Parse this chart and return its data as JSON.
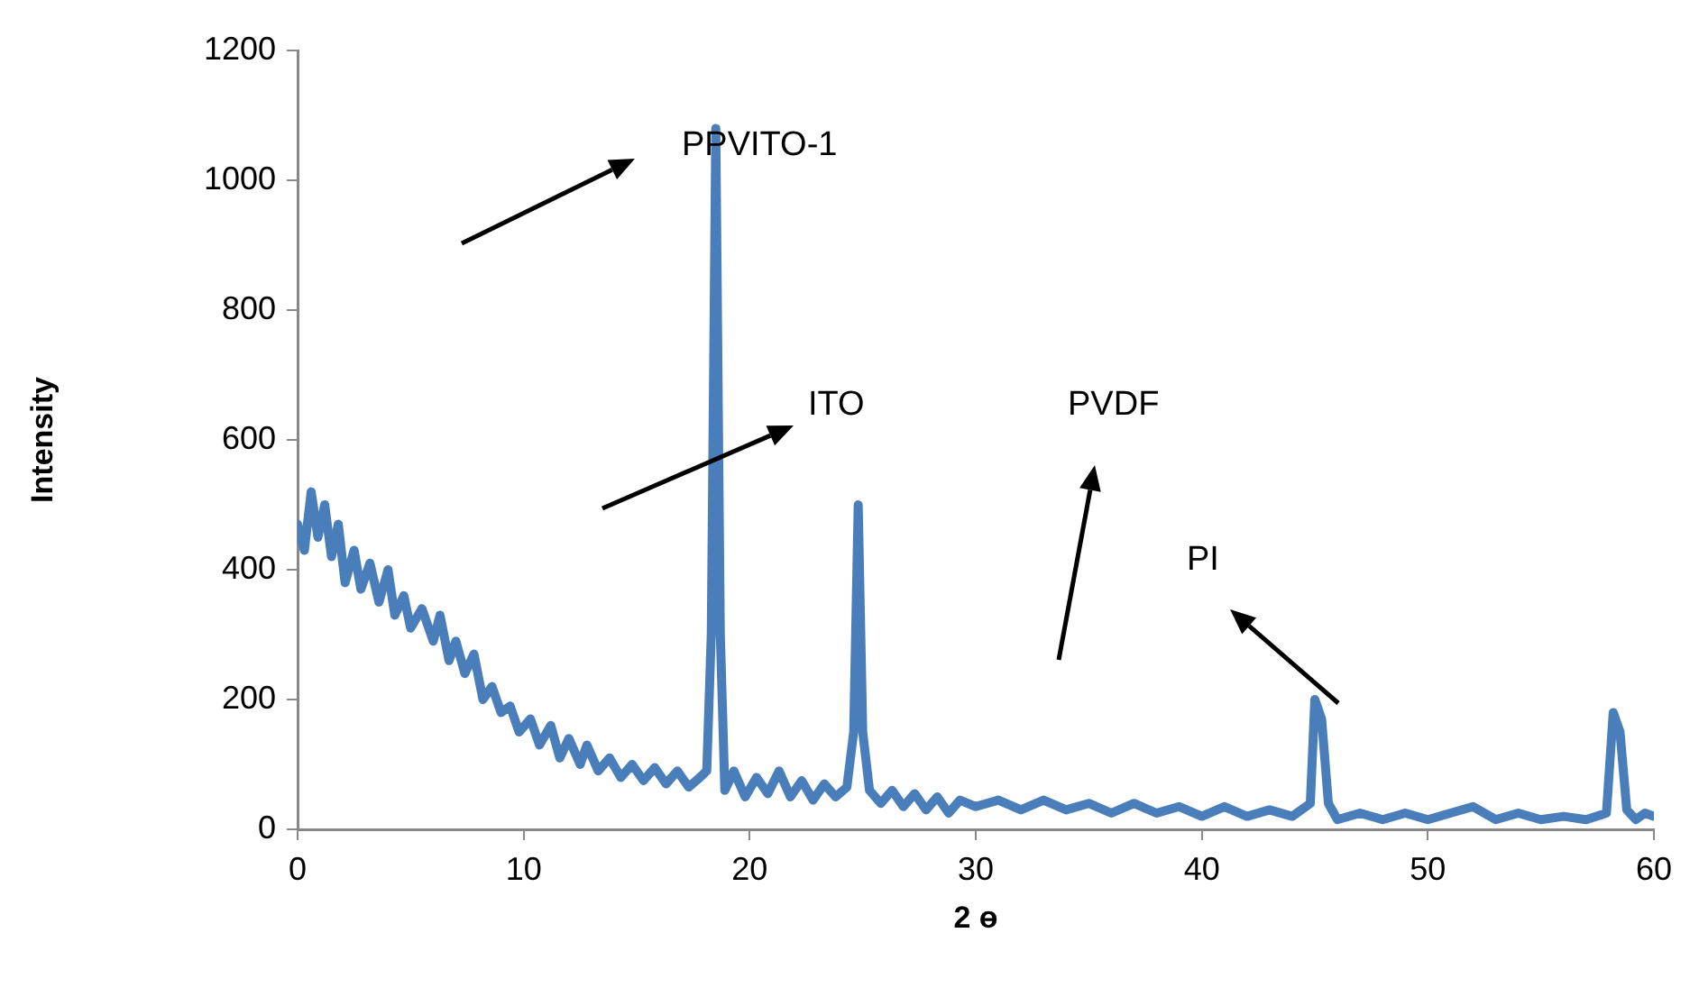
{
  "chart_data": {
    "type": "line",
    "xlabel": "2 ɵ",
    "ylabel": "Intensity",
    "xlim": [
      0,
      60
    ],
    "xticks": [
      0,
      10,
      20,
      30,
      40,
      50,
      60
    ],
    "ylim": [
      0,
      1200
    ],
    "yticks": [
      0,
      200,
      400,
      600,
      800,
      1000,
      1200
    ],
    "grid": false,
    "legend": false,
    "marker": "none",
    "line_style": "solid",
    "annotations": [
      "PPVITO-1",
      "ITO",
      "PVDF",
      "PI"
    ],
    "series": [
      {
        "color": "#4a7ebb",
        "x": [
          0,
          0.3,
          0.6,
          0.9,
          1.2,
          1.5,
          1.8,
          2.1,
          2.5,
          2.8,
          3.2,
          3.6,
          4.0,
          4.3,
          4.7,
          5.0,
          5.5,
          6.0,
          6.3,
          6.7,
          7.0,
          7.4,
          7.8,
          8.2,
          8.6,
          9.0,
          9.4,
          9.8,
          10.3,
          10.7,
          11.2,
          11.6,
          12.0,
          12.5,
          12.8,
          13.3,
          13.8,
          14.3,
          14.8,
          15.3,
          15.8,
          16.3,
          16.8,
          17.3,
          17.8,
          18.1,
          18.3,
          18.5,
          18.7,
          18.9,
          19.3,
          19.8,
          20.3,
          20.8,
          21.3,
          21.8,
          22.3,
          22.8,
          23.3,
          23.8,
          24.3,
          24.6,
          24.8,
          25.0,
          25.3,
          25.8,
          26.3,
          26.8,
          27.3,
          27.8,
          28.3,
          28.8,
          29.3,
          30,
          31,
          32,
          33,
          34,
          35,
          36,
          37,
          38,
          39,
          40,
          41,
          42,
          43,
          44,
          44.8,
          45.0,
          45.3,
          45.6,
          46,
          47,
          48,
          49,
          50,
          51,
          52,
          53,
          54,
          55,
          56,
          57,
          57.9,
          58.2,
          58.5,
          58.8,
          59.2,
          59.6,
          60
        ],
        "values": [
          470,
          430,
          520,
          450,
          500,
          420,
          470,
          380,
          430,
          370,
          410,
          350,
          400,
          330,
          360,
          310,
          340,
          290,
          330,
          260,
          290,
          240,
          270,
          200,
          220,
          180,
          190,
          150,
          170,
          130,
          160,
          110,
          140,
          100,
          130,
          90,
          110,
          80,
          100,
          75,
          95,
          70,
          90,
          65,
          80,
          90,
          300,
          1080,
          300,
          60,
          90,
          50,
          80,
          55,
          90,
          50,
          75,
          45,
          70,
          50,
          65,
          150,
          500,
          150,
          60,
          40,
          60,
          35,
          55,
          30,
          50,
          25,
          45,
          35,
          45,
          30,
          45,
          30,
          40,
          25,
          40,
          25,
          35,
          20,
          35,
          20,
          30,
          20,
          40,
          200,
          170,
          40,
          15,
          25,
          15,
          25,
          15,
          25,
          35,
          15,
          25,
          15,
          20,
          15,
          25,
          180,
          150,
          30,
          15,
          25,
          20
        ]
      }
    ]
  }
}
